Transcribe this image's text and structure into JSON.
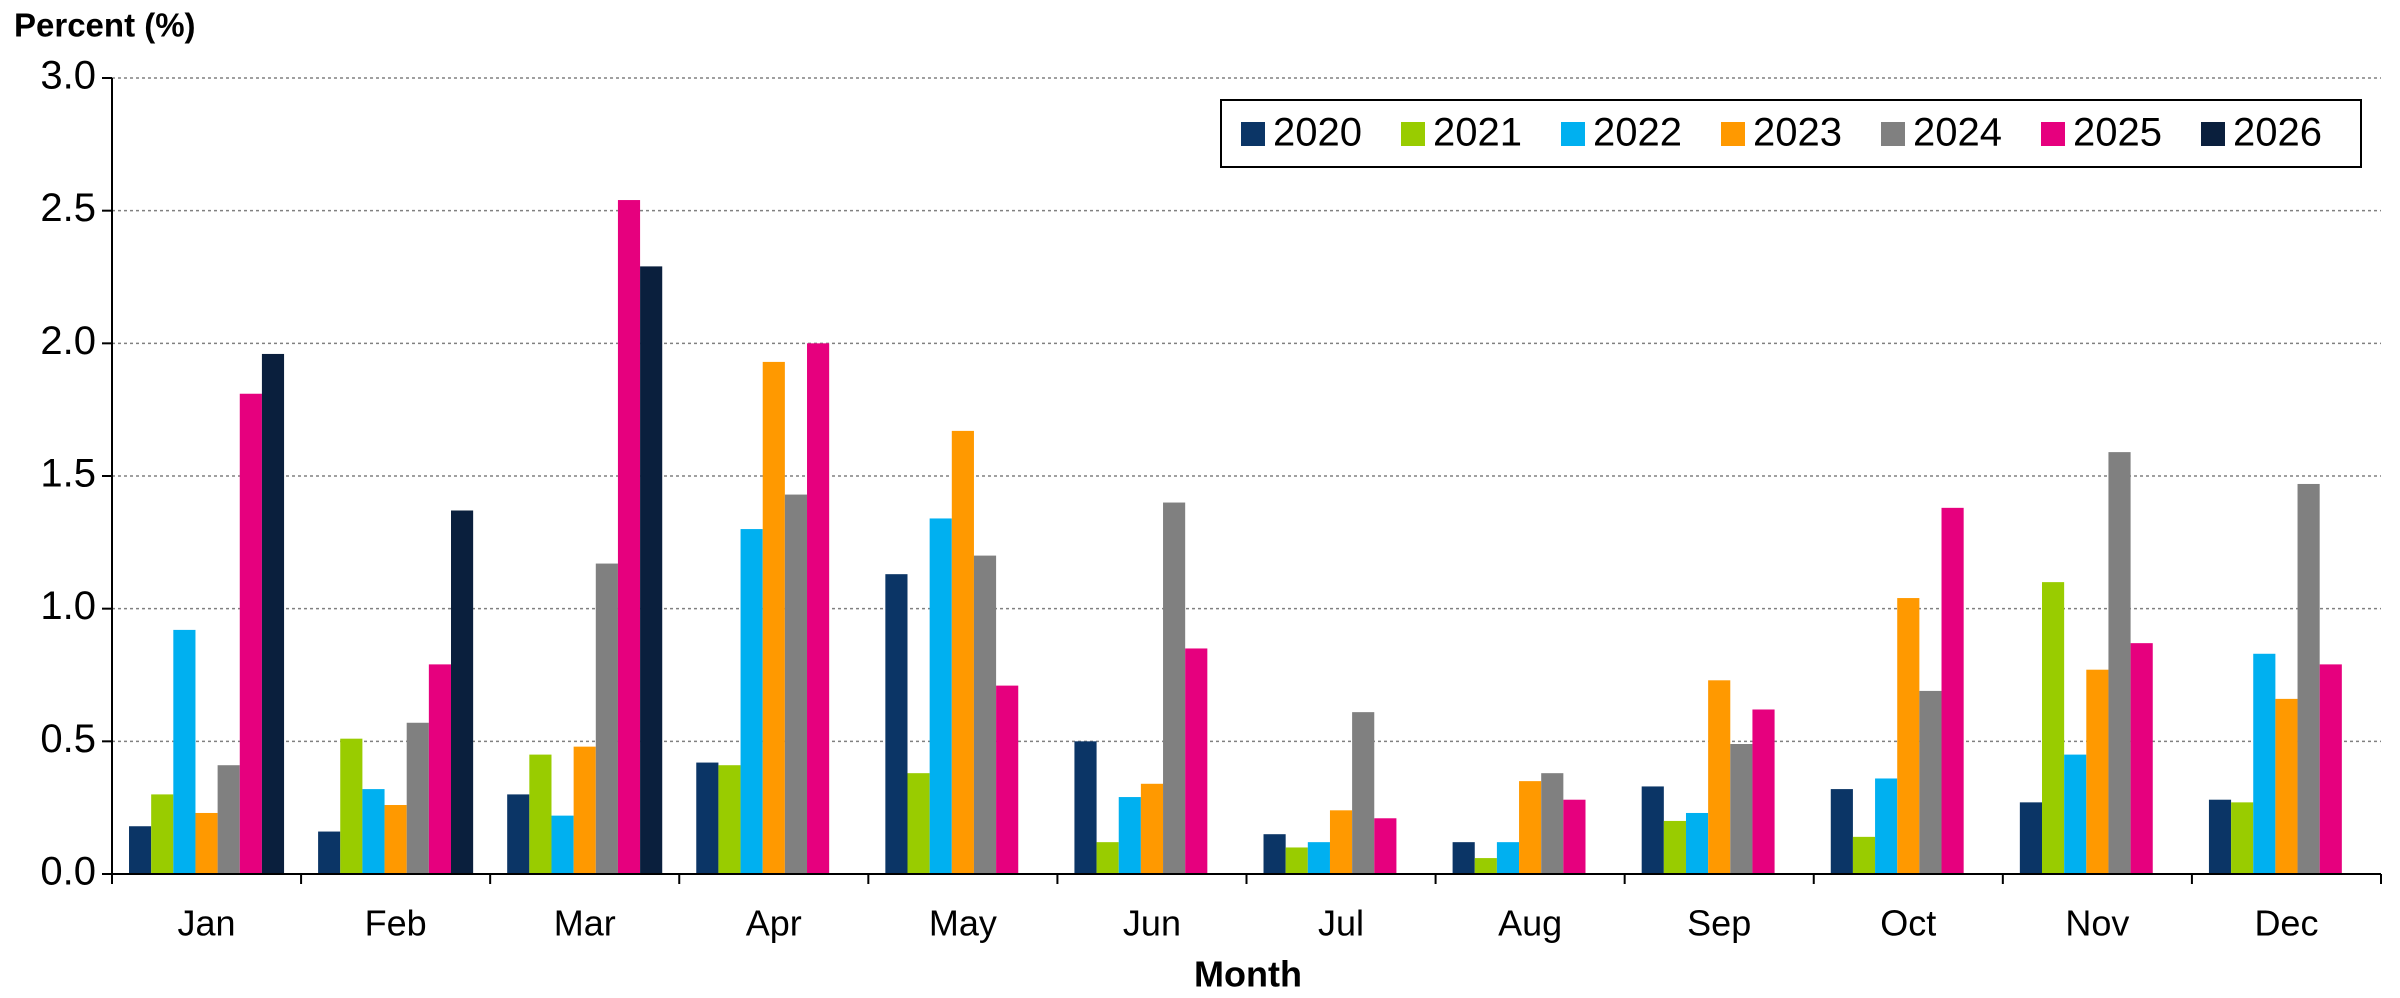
{
  "chart_data": {
    "type": "bar",
    "y_label": "Percent (%)",
    "x_label": "Month",
    "categories": [
      "Jan",
      "Feb",
      "Mar",
      "Apr",
      "May",
      "Jun",
      "Jul",
      "Aug",
      "Sep",
      "Oct",
      "Nov",
      "Dec"
    ],
    "series": [
      {
        "name": "2020",
        "color": "#0b3566",
        "values": [
          0.18,
          0.16,
          0.3,
          0.42,
          1.13,
          0.5,
          0.15,
          0.12,
          0.33,
          0.32,
          0.27,
          0.28
        ]
      },
      {
        "name": "2021",
        "color": "#99cc00",
        "values": [
          0.3,
          0.51,
          0.45,
          0.41,
          0.38,
          0.12,
          0.1,
          0.06,
          0.2,
          0.14,
          1.1,
          0.27
        ]
      },
      {
        "name": "2022",
        "color": "#00b0f0",
        "values": [
          0.92,
          0.32,
          0.22,
          1.3,
          1.34,
          0.29,
          0.12,
          0.12,
          0.23,
          0.36,
          0.45,
          0.83
        ]
      },
      {
        "name": "2023",
        "color": "#ff9900",
        "values": [
          0.23,
          0.26,
          0.48,
          1.93,
          1.67,
          0.34,
          0.24,
          0.35,
          0.73,
          1.04,
          0.77,
          0.66
        ]
      },
      {
        "name": "2024",
        "color": "#808080",
        "values": [
          0.41,
          0.57,
          1.17,
          1.43,
          1.2,
          1.4,
          0.61,
          0.38,
          0.49,
          0.69,
          1.59,
          1.47
        ]
      },
      {
        "name": "2025",
        "color": "#e6007e",
        "values": [
          1.81,
          0.79,
          2.54,
          2.0,
          0.71,
          0.85,
          0.21,
          0.28,
          0.62,
          1.38,
          0.87,
          0.79
        ]
      },
      {
        "name": "2026",
        "color": "#0a1f3d",
        "values": [
          1.96,
          1.37,
          2.29,
          null,
          null,
          null,
          null,
          null,
          null,
          null,
          null,
          null
        ]
      }
    ],
    "ylim": [
      0,
      3
    ],
    "yticks": [
      {
        "value": 0,
        "label": "0.0"
      },
      0.5,
      {
        "value": 1,
        "label": "1.0"
      },
      1.5,
      {
        "value": 2,
        "label": "2.0"
      },
      2.5,
      {
        "value": 3,
        "label": "3.0"
      }
    ],
    "grid": true,
    "legend": "top-right"
  }
}
